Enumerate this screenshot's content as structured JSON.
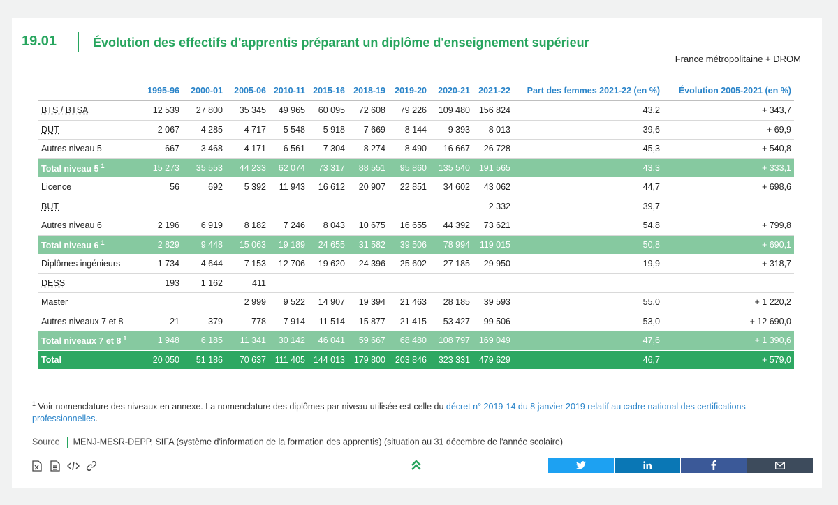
{
  "figure": {
    "number": "19.01",
    "title": "Évolution des effectifs d'apprentis préparant un diplôme d'enseignement supérieur",
    "scope": "France métropolitaine + DROM"
  },
  "table": {
    "columns": [
      "1995-96",
      "2000-01",
      "2005-06",
      "2010-11",
      "2015-16",
      "2018-19",
      "2019-20",
      "2020-21",
      "2021-22",
      "Part des femmes 2021-22 (en %)",
      "Évolution 2005-2021 (en %)"
    ],
    "rows": [
      {
        "label": "BTS / BTSA",
        "values": [
          "12 539",
          "27 800",
          "35 345",
          "49 965",
          "60 095",
          "72 608",
          "79 226",
          "109 480",
          "156 824",
          "43,2",
          "+ 343,7"
        ]
      },
      {
        "label": "DUT",
        "values": [
          "2 067",
          "4 285",
          "4 717",
          "5 548",
          "5 918",
          "7 669",
          "8 144",
          "9 393",
          "8 013",
          "39,6",
          "+ 69,9"
        ]
      },
      {
        "label": "Autres niveau 5",
        "values": [
          "667",
          "3 468",
          "4 171",
          "6 561",
          "7 304",
          "8 274",
          "8 490",
          "16 667",
          "26 728",
          "45,3",
          "+ 540,8"
        ]
      },
      {
        "label": "Total niveau 5",
        "sup": "1",
        "values": [
          "15 273",
          "35 553",
          "44 233",
          "62 074",
          "73 317",
          "88 551",
          "95 860",
          "135 540",
          "191 565",
          "43,3",
          "+ 333,1"
        ]
      },
      {
        "label": "Licence",
        "values": [
          "56",
          "692",
          "5 392",
          "11 943",
          "16 612",
          "20 907",
          "22 851",
          "34 602",
          "43 062",
          "44,7",
          "+ 698,6"
        ]
      },
      {
        "label": "BUT",
        "values": [
          "",
          "",
          "",
          "",
          "",
          "",
          "",
          "",
          "2 332",
          "39,7",
          ""
        ]
      },
      {
        "label": "Autres niveau 6",
        "values": [
          "2 196",
          "6 919",
          "8 182",
          "7 246",
          "8 043",
          "10 675",
          "16 655",
          "44 392",
          "73 621",
          "54,8",
          "+ 799,8"
        ]
      },
      {
        "label": "Total niveau 6",
        "sup": "1",
        "values": [
          "2 829",
          "9 448",
          "15 063",
          "19 189",
          "24 655",
          "31 582",
          "39 506",
          "78 994",
          "119 015",
          "50,8",
          "+ 690,1"
        ]
      },
      {
        "label": "Diplômes ingénieurs",
        "values": [
          "1 734",
          "4 644",
          "7 153",
          "12 706",
          "19 620",
          "24 396",
          "25 602",
          "27 185",
          "29 950",
          "19,9",
          "+ 318,7"
        ]
      },
      {
        "label": "DESS",
        "values": [
          "193",
          "1 162",
          "411",
          "",
          "",
          "",
          "",
          "",
          "",
          "",
          ""
        ]
      },
      {
        "label": "Master",
        "values": [
          "",
          "",
          "2 999",
          "9 522",
          "14 907",
          "19 394",
          "21 463",
          "28 185",
          "39 593",
          "55,0",
          "+ 1 220,2"
        ]
      },
      {
        "label": "Autres niveaux 7 et 8",
        "values": [
          "21",
          "379",
          "778",
          "7 914",
          "11 514",
          "15 877",
          "21 415",
          "53 427",
          "99 506",
          "53,0",
          "+ 12 690,0"
        ]
      },
      {
        "label": "Total niveaux 7 et 8",
        "sup": "1",
        "values": [
          "1 948",
          "6 185",
          "11 341",
          "30 142",
          "46 041",
          "59 667",
          "68 480",
          "108 797",
          "169 049",
          "47,6",
          "+ 1 390,6"
        ]
      },
      {
        "label": "Total",
        "values": [
          "20 050",
          "51 186",
          "70 637",
          "111 405",
          "144 013",
          "179 800",
          "203 846",
          "323 331",
          "479 629",
          "46,7",
          "+ 579,0"
        ]
      }
    ]
  },
  "footnote": {
    "marker": "1",
    "text": "Voir nomenclature des niveaux en annexe. La nomenclature des diplômes par niveau utilisée est celle du",
    "link_text": "décret n° 2019-14 du 8 janvier 2019 relatif au cadre national des certifications professionnelles",
    "end": "."
  },
  "source": {
    "label": "Source",
    "text": "MENJ-MESR-DEPP, SIFA (système d'information de la formation des apprentis) (situation au 31 décembre de l'année scolaire)"
  },
  "colors": {
    "accent_green": "#27a55e",
    "subtotal_row": "#86c9a0",
    "total_row": "#2ea862",
    "header_blue": "#2a84c9",
    "twitter": "#1da1f2",
    "linkedin": "#0a77b5",
    "facebook": "#3b5998",
    "email": "#3d4b5c"
  },
  "icons": [
    "excel-icon",
    "document-icon",
    "code-icon",
    "link-icon",
    "chevron-double-up-icon",
    "twitter-icon",
    "linkedin-icon",
    "facebook-icon",
    "email-icon"
  ]
}
